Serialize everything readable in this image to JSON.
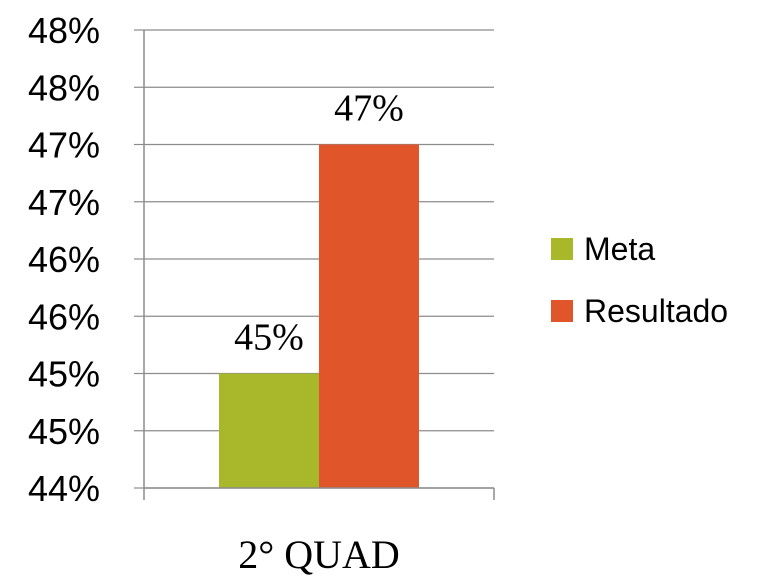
{
  "chart_data": {
    "type": "bar",
    "categories": [
      "2° QUAD"
    ],
    "series": [
      {
        "name": "Meta",
        "values": [
          0.45
        ],
        "color": "#A8B82A",
        "data_label": "45%"
      },
      {
        "name": "Resultado",
        "values": [
          0.47
        ],
        "color": "#E0552A",
        "data_label": "47%"
      }
    ],
    "ylim": [
      0.44,
      0.48
    ],
    "y_ticks": [
      0.44,
      0.445,
      0.45,
      0.455,
      0.46,
      0.465,
      0.47,
      0.475,
      0.48
    ],
    "y_tick_labels": [
      "44%",
      "45%",
      "45%",
      "46%",
      "46%",
      "47%",
      "47%",
      "48%",
      "48%"
    ],
    "grid": true,
    "legend": "right"
  }
}
